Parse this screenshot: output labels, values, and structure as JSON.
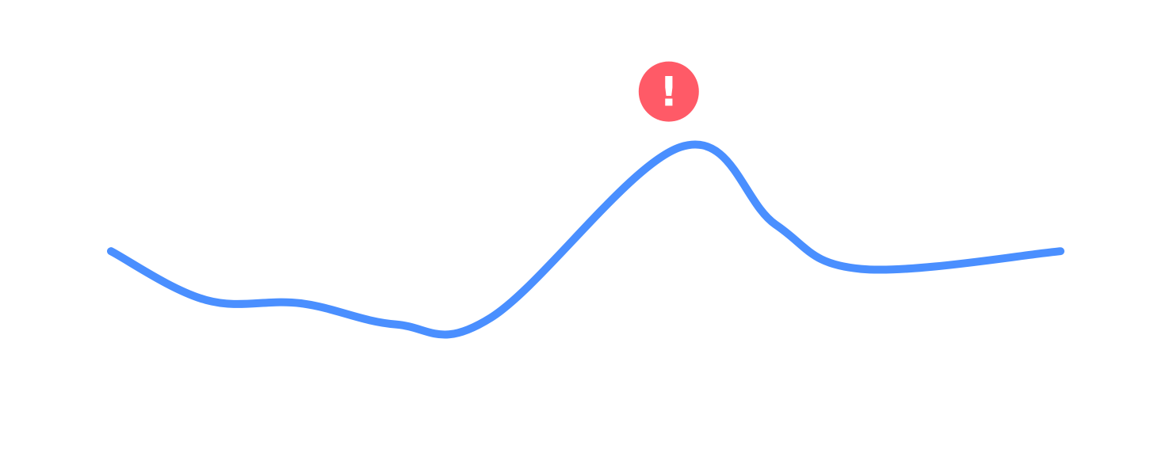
{
  "chart_data": {
    "type": "line",
    "title": "",
    "xlabel": "",
    "ylabel": "",
    "grid": false,
    "legend": "none",
    "axes_visible": false,
    "series": [
      {
        "color": "#4A8FFF",
        "points": [
          {
            "x": 0.0,
            "y": 0.51
          },
          {
            "x": 0.1,
            "y": 0.29
          },
          {
            "x": 0.2,
            "y": 0.275
          },
          {
            "x": 0.3,
            "y": 0.18
          },
          {
            "x": 0.4,
            "y": 0.21
          },
          {
            "x": 0.6,
            "y": 0.98
          },
          {
            "x": 0.7,
            "y": 0.63
          },
          {
            "x": 0.79,
            "y": 0.43
          },
          {
            "x": 1.0,
            "y": 0.51
          }
        ]
      }
    ],
    "annotations": [
      {
        "type": "alert-marker",
        "icon": "exclamation-icon",
        "text": "!",
        "color": "#FF5A67",
        "at_x": 0.6,
        "at_y": 0.98
      }
    ]
  }
}
